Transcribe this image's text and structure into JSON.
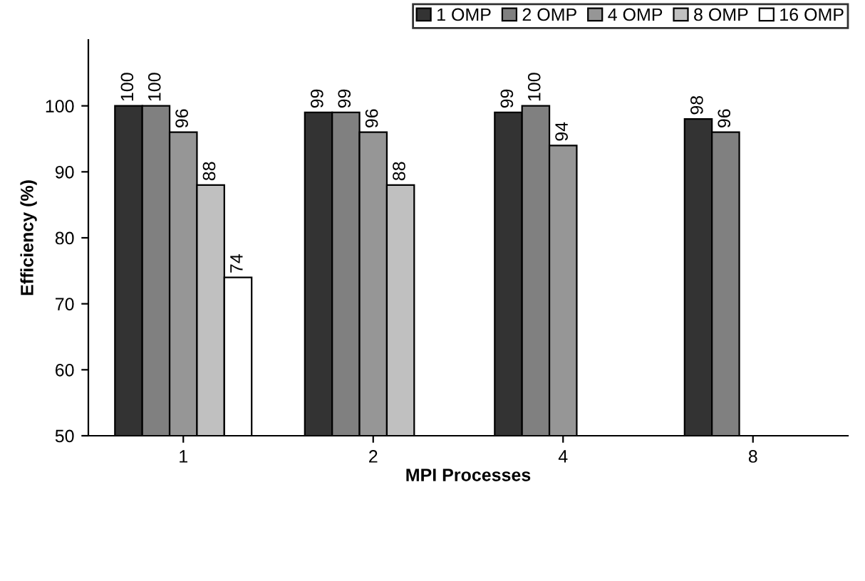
{
  "chart_data": {
    "type": "bar",
    "xlabel": "MPI Processes",
    "ylabel": "Efficiency (%)",
    "categories": [
      "1",
      "2",
      "4",
      "8"
    ],
    "series": [
      {
        "name": "1 OMP",
        "color": "#333333",
        "values": [
          100,
          99,
          99,
          98
        ]
      },
      {
        "name": "2 OMP",
        "color": "#808080",
        "values": [
          100,
          99,
          100,
          96
        ]
      },
      {
        "name": "4 OMP",
        "color": "#969696",
        "values": [
          96,
          96,
          94,
          null
        ]
      },
      {
        "name": "8 OMP",
        "color": "#c0c0c0",
        "values": [
          88,
          88,
          null,
          null
        ]
      },
      {
        "name": "16 OMP",
        "color": "#ffffff",
        "values": [
          74,
          null,
          null,
          null
        ]
      }
    ],
    "ylim": [
      50,
      110
    ],
    "yticks": [
      50,
      60,
      70,
      80,
      90,
      100
    ],
    "grid": false,
    "legend": "top right",
    "data_labels": true
  }
}
